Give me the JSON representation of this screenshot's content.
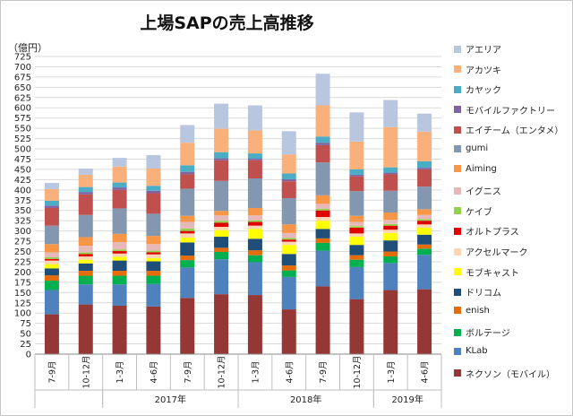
{
  "chart_data": {
    "type": "bar",
    "stacked": true,
    "title": "上場SAPの売上高推移",
    "ylabel": "（億円）",
    "xlabel": "",
    "ylim": [
      0,
      725
    ],
    "ytick_step": 25,
    "grid": true,
    "legend_position": "right",
    "categories": [
      "7-9月",
      "10-12月",
      "1-3月",
      "4-6月",
      "7-9月",
      "10-12月",
      "1-3月",
      "4-6月",
      "7-9月",
      "10-12月",
      "1-3月",
      "4-6月"
    ],
    "year_groups": [
      {
        "label": "",
        "start": 0,
        "end": 1
      },
      {
        "label": "2017年",
        "start": 2,
        "end": 5
      },
      {
        "label": "2018年",
        "start": 6,
        "end": 9
      },
      {
        "label": "2019年",
        "start": 10,
        "end": 11
      }
    ],
    "series": [
      {
        "name": "ネクソン（モバイル）",
        "color": "#953735",
        "values": [
          97,
          121,
          118,
          116,
          137,
          146,
          144,
          109,
          165,
          134,
          156,
          158
        ]
      },
      {
        "name": "KLab",
        "color": "#4f81bd",
        "values": [
          59,
          49,
          52,
          55,
          74,
          85,
          80,
          79,
          87,
          78,
          66,
          84
        ]
      },
      {
        "name": "ボルテージ",
        "color": "#00b050",
        "values": [
          23,
          21,
          21,
          20,
          18,
          18,
          17,
          16,
          19,
          18,
          16,
          15
        ]
      },
      {
        "name": "enish",
        "color": "#e46c0a",
        "values": [
          13,
          12,
          12,
          12,
          11,
          10,
          12,
          12,
          11,
          11,
          12,
          10
        ]
      },
      {
        "name": "ドリコム",
        "color": "#1f4e79",
        "values": [
          17,
          18,
          25,
          23,
          32,
          27,
          28,
          28,
          23,
          25,
          27,
          24
        ]
      },
      {
        "name": "モブキャスト",
        "color": "#ffff00",
        "values": [
          10,
          9,
          9,
          8,
          12,
          16,
          24,
          22,
          20,
          20,
          18,
          17
        ]
      },
      {
        "name": "アクセルマーク",
        "color": "#fcd5b4",
        "values": [
          9,
          8,
          8,
          9,
          10,
          8,
          8,
          8,
          9,
          8,
          8,
          8
        ]
      },
      {
        "name": "オルトプラス",
        "color": "#e00000",
        "values": [
          4,
          6,
          6,
          5,
          6,
          10,
          9,
          5,
          16,
          14,
          10,
          9
        ]
      },
      {
        "name": "ケイブ",
        "color": "#92d050",
        "values": [
          4,
          4,
          4,
          4,
          6,
          5,
          4,
          4,
          4,
          4,
          4,
          4
        ]
      },
      {
        "name": "イグニス",
        "color": "#e6b9b8",
        "values": [
          12,
          16,
          18,
          16,
          16,
          13,
          12,
          12,
          12,
          10,
          10,
          10
        ]
      },
      {
        "name": "Aiming",
        "color": "#f79646",
        "values": [
          20,
          21,
          20,
          20,
          15,
          11,
          18,
          21,
          21,
          15,
          18,
          14
        ]
      },
      {
        "name": "gumi",
        "color": "#8497b0",
        "values": [
          45,
          54,
          62,
          54,
          66,
          73,
          72,
          64,
          80,
          60,
          53,
          55
        ]
      },
      {
        "name": "エイチーム（エンタメ）",
        "color": "#c0504d",
        "values": [
          43,
          50,
          45,
          50,
          35,
          50,
          44,
          41,
          42,
          36,
          40,
          42
        ]
      },
      {
        "name": "モバイルファクトリー",
        "color": "#8064a2",
        "values": [
          6,
          6,
          6,
          6,
          6,
          5,
          4,
          5,
          6,
          4,
          4,
          4
        ]
      },
      {
        "name": "カヤック",
        "color": "#4bacc6",
        "values": [
          12,
          12,
          12,
          12,
          16,
          15,
          13,
          14,
          15,
          13,
          13,
          16
        ]
      },
      {
        "name": "アカツキ",
        "color": "#fab07a",
        "values": [
          28,
          30,
          39,
          42,
          55,
          57,
          56,
          46,
          76,
          68,
          98,
          72
        ]
      },
      {
        "name": "アエリア",
        "color": "#b9c6e0",
        "values": [
          15,
          15,
          21,
          33,
          43,
          61,
          61,
          57,
          77,
          71,
          66,
          44
        ]
      }
    ]
  }
}
